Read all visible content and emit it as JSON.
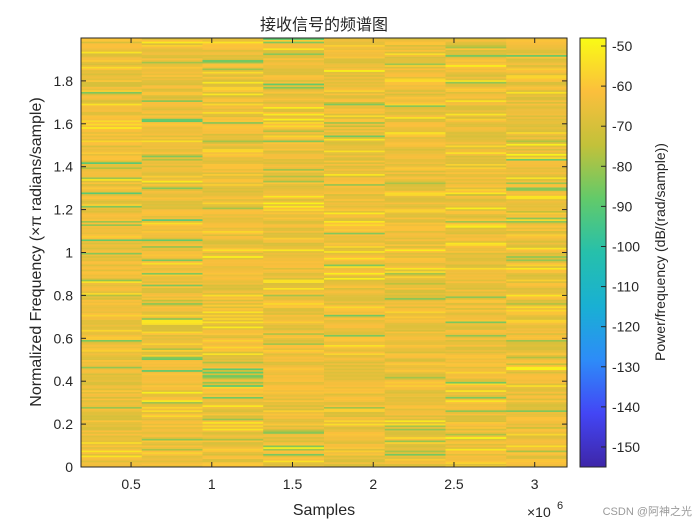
{
  "chart_data": {
    "type": "heatmap",
    "title": "接收信号的频谱图",
    "xlabel": "Samples",
    "ylabel": "Normalized Frequency (×π radians/sample)",
    "x_exponent_label": "×10",
    "x_exponent_power": "6",
    "xlim": [
      0.19,
      3.2
    ],
    "ylim": [
      0,
      2
    ],
    "x_ticks": [
      0.5,
      1,
      1.5,
      2,
      2.5,
      3
    ],
    "x_tick_labels": [
      "0.5",
      "1",
      "1.5",
      "2",
      "2.5",
      "3"
    ],
    "y_ticks": [
      0,
      0.2,
      0.4,
      0.6,
      0.8,
      1,
      1.2,
      1.4,
      1.6,
      1.8
    ],
    "y_tick_labels": [
      "0",
      "0.2",
      "0.4",
      "0.6",
      "0.8",
      "1",
      "1.2",
      "1.4",
      "1.6",
      "1.8"
    ],
    "time_segments": 8,
    "frequency_bins": 256,
    "value_range_db": [
      -155,
      -48
    ],
    "typical_level_db": -65,
    "colormap": "parula",
    "colorbar": {
      "label": "Power/frequency (dB/(rad/sample))",
      "ticks": [
        -50,
        -60,
        -70,
        -80,
        -90,
        -100,
        -110,
        -120,
        -130,
        -140,
        -150
      ],
      "tick_labels": [
        "-50",
        "-60",
        "-70",
        "-80",
        "-90",
        "-100",
        "-110",
        "-120",
        "-130",
        "-140",
        "-150"
      ],
      "range": [
        -155,
        -48
      ]
    }
  },
  "watermark": "CSDN @阿神之光"
}
